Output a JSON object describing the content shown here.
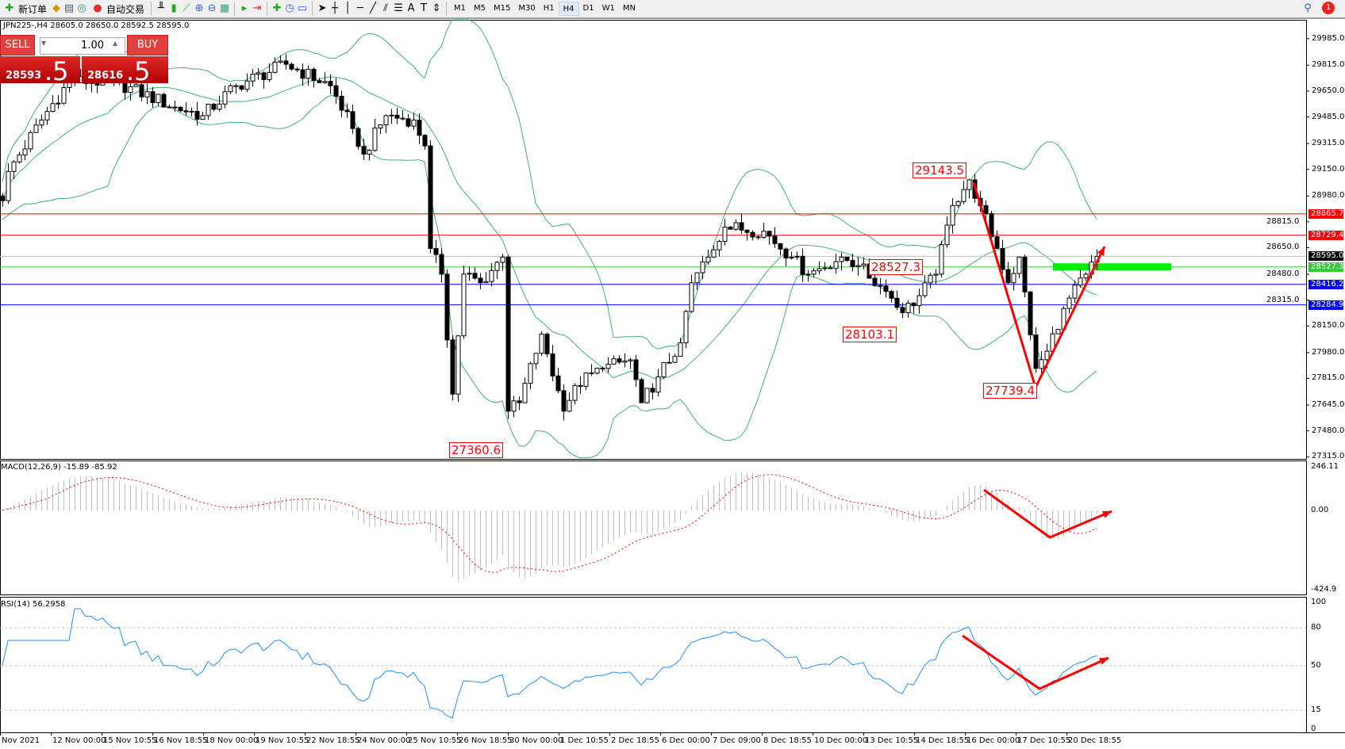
{
  "toolbar": {
    "new_order": "新订单",
    "auto_trading": "自动交易",
    "timeframes": [
      "M1",
      "M5",
      "M15",
      "M30",
      "H1",
      "H4",
      "D1",
      "W1",
      "MN"
    ],
    "active_timeframe": "H4",
    "notifications": "1"
  },
  "chart": {
    "info": "JPN225-,H4  28605.0 28650.0 28592.5 28595.0",
    "trade_panel": {
      "sell": "SELL",
      "buy": "BUY",
      "lot": "1.00",
      "bid_main": "28593",
      "bid_big": ".5",
      "ask_main": "28616",
      "ask_big": ".5"
    },
    "price_axis": [
      "29985.0",
      "29815.0",
      "29650.0",
      "29485.0",
      "29315.0",
      "29150.0",
      "28980.0",
      "28815.0",
      "28650.0",
      "28480.0",
      "28315.0",
      "28150.0",
      "27980.0",
      "27815.0",
      "27645.0",
      "27480.0",
      "27315.0"
    ],
    "price_lines": [
      {
        "value": "28865.7",
        "color": "#ff0000"
      },
      {
        "value": "28729.4",
        "color": "#ff0000"
      },
      {
        "value": "28595.0",
        "color": "#000000",
        "line": "#c0c0c0"
      },
      {
        "value": "28527.3",
        "color": "#32cd32"
      },
      {
        "value": "28416.2",
        "color": "#0000ff"
      },
      {
        "value": "28284.9",
        "color": "#0000ff"
      }
    ],
    "annotations": [
      "29143.5",
      "28527.3",
      "28103.1",
      "27739.4",
      "27360.6"
    ],
    "close_keypoints": [
      [
        0,
        28950
      ],
      [
        1,
        29137
      ],
      [
        8,
        29520
      ],
      [
        12,
        29712
      ],
      [
        20,
        29712
      ],
      [
        31,
        29547
      ],
      [
        36,
        29493
      ],
      [
        42,
        29684
      ],
      [
        51,
        29821
      ],
      [
        59,
        29684
      ],
      [
        63,
        29411
      ],
      [
        65,
        29247
      ],
      [
        69,
        29493
      ],
      [
        74,
        29465
      ],
      [
        76,
        29300
      ],
      [
        77,
        28645
      ],
      [
        79,
        28481
      ],
      [
        81,
        27715
      ],
      [
        83,
        28481
      ],
      [
        86,
        28426
      ],
      [
        90,
        28590
      ],
      [
        91,
        27606
      ],
      [
        93,
        27660
      ],
      [
        97,
        28098
      ],
      [
        101,
        27606
      ],
      [
        103,
        27770
      ],
      [
        108,
        27879
      ],
      [
        113,
        27934
      ],
      [
        115,
        27660
      ],
      [
        118,
        27825
      ],
      [
        122,
        28043
      ],
      [
        124,
        28426
      ],
      [
        127,
        28590
      ],
      [
        130,
        28782
      ],
      [
        137,
        28755
      ],
      [
        142,
        28590
      ],
      [
        145,
        28481
      ],
      [
        151,
        28590
      ],
      [
        154,
        28536
      ],
      [
        159,
        28371
      ],
      [
        162,
        28235
      ],
      [
        165,
        28344
      ],
      [
        168,
        28481
      ],
      [
        171,
        28919
      ],
      [
        174,
        29083
      ],
      [
        176,
        28919
      ],
      [
        179,
        28645
      ],
      [
        181,
        28426
      ],
      [
        183,
        28590
      ],
      [
        186,
        27879
      ],
      [
        188,
        27989
      ],
      [
        191,
        28262
      ],
      [
        195,
        28481
      ],
      [
        197,
        28595
      ]
    ],
    "colors": {
      "bollinger": "#3cb371",
      "arrow": "#ff0000",
      "support_zone": "#00ee00",
      "rsi": "#1e90ff",
      "macd_hist": "#c0c0c0",
      "macd_signal": "#ff0000"
    }
  },
  "macd": {
    "label": "MACD(12,26,9) -15.89 -85.92",
    "axis": [
      "246.11",
      "0.00",
      "-424.9"
    ]
  },
  "rsi": {
    "label": "RSI(14) 56.2958",
    "axis": [
      "100",
      "80",
      "50",
      "15",
      "0"
    ]
  },
  "time_axis": [
    "Nov 2021",
    "12 Nov 00:00",
    "15 Nov 10:55",
    "16 Nov 18:55",
    "18 Nov 00:00",
    "19 Nov 10:55",
    "22 Nov 18:55",
    "24 Nov 00:00",
    "25 Nov 10:55",
    "26 Nov 18:55",
    "30 Nov 00:00",
    "1 Dec 10:55",
    "2 Dec 18:55",
    "6 Dec 00:00",
    "7 Dec 09:00",
    "8 Dec 18:55",
    "10 Dec 00:00",
    "13 Dec 10:55",
    "14 Dec 18:55",
    "16 Dec 00:00",
    "17 Dec 10:55",
    "20 Dec 18:55"
  ]
}
